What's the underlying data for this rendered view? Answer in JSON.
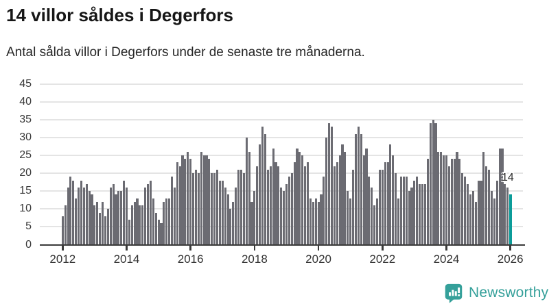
{
  "header": {
    "title": "14 villor såldes i Degerfors",
    "subtitle": "Antal sålda villor i Degerfors under de senaste tre månaderna."
  },
  "annotation": {
    "label": "14"
  },
  "branding": {
    "name": "Newsworthy"
  },
  "colors": {
    "bar": "#6b6b72",
    "highlight": "#0b9c99",
    "brand": "#35a09a",
    "axis": "#3a3a3a",
    "grid": "#e4e4e4",
    "title_text": "#161616",
    "body_text": "#333333"
  },
  "chart_data": {
    "type": "bar",
    "title": "14 villor såldes i Degerfors",
    "subtitle": "Antal sålda villor i Degerfors under de senaste tre månaderna.",
    "xlabel": "",
    "ylabel": "",
    "frequency": "monthly",
    "x_start": "2012-01",
    "x_end": "2026-01",
    "ylim": [
      0,
      45
    ],
    "grid": true,
    "y_ticks": [
      0,
      5,
      10,
      15,
      20,
      25,
      30,
      35,
      40,
      45
    ],
    "x_tick_years": [
      2012,
      2014,
      2016,
      2018,
      2020,
      2022,
      2024,
      2026
    ],
    "x_tick_labels": [
      "2012",
      "2014",
      "2016",
      "2018",
      "2020",
      "2022",
      "2024",
      "2026"
    ],
    "values": [
      8,
      11,
      16,
      19,
      18,
      13,
      16,
      18,
      16,
      17,
      15,
      14,
      11,
      12,
      9,
      12,
      8,
      10,
      16,
      17,
      14,
      15,
      15,
      18,
      16,
      7,
      11,
      12,
      13,
      11,
      11,
      16,
      17,
      18,
      13,
      9,
      7,
      6,
      12,
      13,
      13,
      19,
      16,
      23,
      22,
      25,
      24,
      26,
      24,
      20,
      21,
      20,
      26,
      25,
      25,
      24,
      20,
      20,
      21,
      18,
      18,
      16,
      14,
      10,
      12,
      16,
      21,
      21,
      20,
      30,
      26,
      12,
      15,
      22,
      28,
      33,
      31,
      21,
      22,
      27,
      23,
      22,
      16,
      15,
      17,
      19,
      20,
      23,
      27,
      26,
      25,
      22,
      23,
      13,
      12,
      13,
      12,
      14,
      19,
      30,
      34,
      33,
      22,
      23,
      25,
      28,
      26,
      15,
      13,
      21,
      31,
      33,
      31,
      25,
      27,
      19,
      16,
      11,
      13,
      21,
      21,
      23,
      23,
      28,
      25,
      20,
      13,
      19,
      19,
      19,
      15,
      16,
      18,
      19,
      17,
      17,
      17,
      24,
      34,
      35,
      34,
      26,
      26,
      25,
      25,
      22,
      24,
      24,
      26,
      24,
      20,
      19,
      17,
      14,
      15,
      12,
      18,
      18,
      26,
      22,
      21,
      15,
      13,
      18,
      27,
      27,
      17,
      16,
      14
    ],
    "highlight": {
      "index": 168,
      "value": 14,
      "label": "14"
    },
    "legend": null
  }
}
